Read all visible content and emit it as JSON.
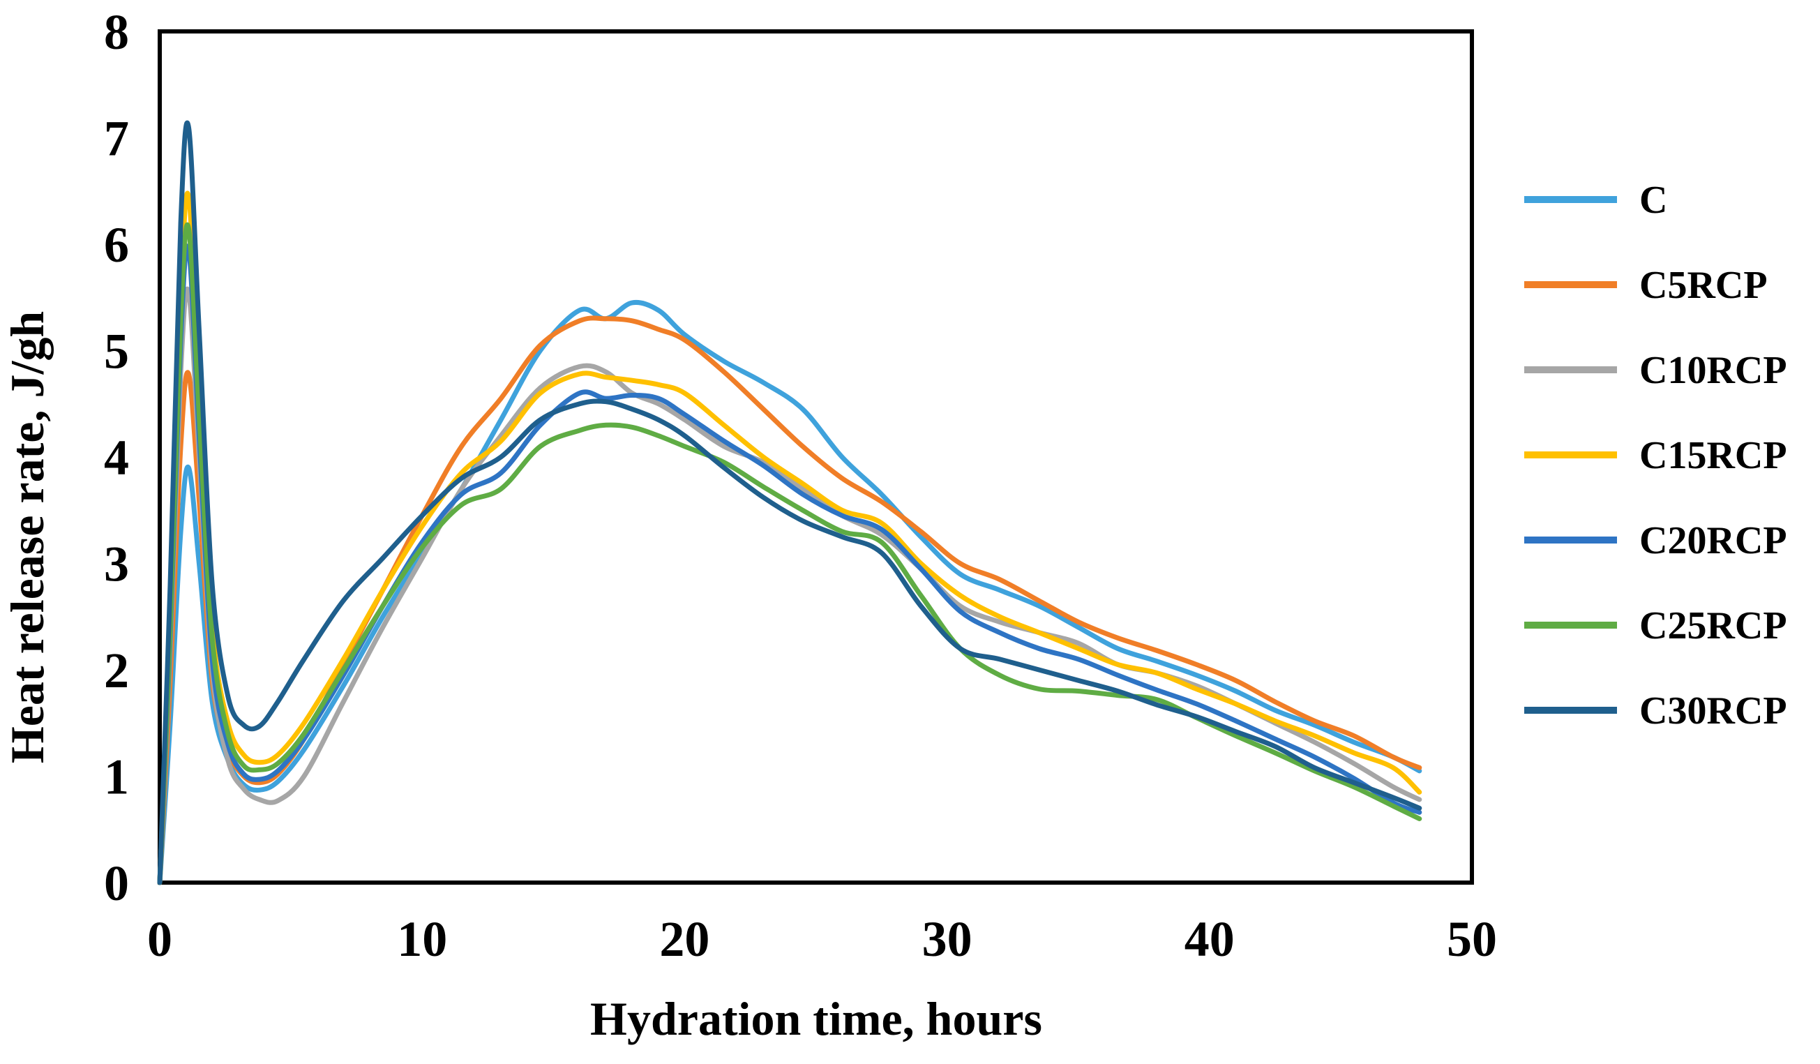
{
  "chart_data": {
    "type": "line",
    "title": "",
    "xlabel": "Hydration time, hours",
    "ylabel": "Heat release rate, J/gh",
    "xlim": [
      0,
      50
    ],
    "ylim": [
      0,
      8
    ],
    "xticks": [
      0,
      10,
      20,
      30,
      40,
      50
    ],
    "yticks": [
      0,
      1,
      2,
      3,
      4,
      5,
      6,
      7,
      8
    ],
    "grid": false,
    "legend_position": "right",
    "border_color": "#000000",
    "series": [
      {
        "name": "C",
        "color": "#3FA2DC",
        "points": [
          [
            0,
            0
          ],
          [
            0.4,
            1.5
          ],
          [
            0.8,
            3.3
          ],
          [
            1.1,
            3.9
          ],
          [
            1.5,
            3.0
          ],
          [
            2,
            1.7
          ],
          [
            2.6,
            1.15
          ],
          [
            3.2,
            0.92
          ],
          [
            3.8,
            0.87
          ],
          [
            4.5,
            0.95
          ],
          [
            5.5,
            1.25
          ],
          [
            7,
            1.85
          ],
          [
            8.5,
            2.5
          ],
          [
            10,
            3.1
          ],
          [
            11.5,
            3.7
          ],
          [
            13,
            4.35
          ],
          [
            14.5,
            5.0
          ],
          [
            16,
            5.38
          ],
          [
            17,
            5.3
          ],
          [
            18,
            5.45
          ],
          [
            19,
            5.38
          ],
          [
            20,
            5.15
          ],
          [
            21.5,
            4.9
          ],
          [
            23,
            4.7
          ],
          [
            24.5,
            4.45
          ],
          [
            26,
            4.0
          ],
          [
            27.5,
            3.65
          ],
          [
            29,
            3.25
          ],
          [
            30.5,
            2.9
          ],
          [
            32,
            2.75
          ],
          [
            33.5,
            2.6
          ],
          [
            35,
            2.4
          ],
          [
            36.5,
            2.2
          ],
          [
            38,
            2.08
          ],
          [
            39.5,
            1.95
          ],
          [
            41,
            1.8
          ],
          [
            42.5,
            1.62
          ],
          [
            44,
            1.48
          ],
          [
            45.5,
            1.32
          ],
          [
            47,
            1.18
          ],
          [
            48,
            1.05
          ]
        ]
      },
      {
        "name": "C5RCP",
        "color": "#F07E27",
        "points": [
          [
            0,
            0
          ],
          [
            0.4,
            1.9
          ],
          [
            0.8,
            4.1
          ],
          [
            1.1,
            4.78
          ],
          [
            1.5,
            3.6
          ],
          [
            2,
            1.9
          ],
          [
            2.6,
            1.25
          ],
          [
            3.2,
            1.0
          ],
          [
            3.8,
            0.94
          ],
          [
            4.5,
            1.02
          ],
          [
            5.5,
            1.35
          ],
          [
            7,
            2.05
          ],
          [
            8.5,
            2.75
          ],
          [
            10,
            3.45
          ],
          [
            11.5,
            4.1
          ],
          [
            13,
            4.55
          ],
          [
            14.5,
            5.05
          ],
          [
            16,
            5.28
          ],
          [
            17,
            5.3
          ],
          [
            18,
            5.28
          ],
          [
            19,
            5.2
          ],
          [
            20,
            5.1
          ],
          [
            21.5,
            4.8
          ],
          [
            23,
            4.45
          ],
          [
            24.5,
            4.1
          ],
          [
            26,
            3.8
          ],
          [
            27.5,
            3.58
          ],
          [
            29,
            3.3
          ],
          [
            30.5,
            3.0
          ],
          [
            32,
            2.85
          ],
          [
            33.5,
            2.65
          ],
          [
            35,
            2.45
          ],
          [
            36.5,
            2.3
          ],
          [
            38,
            2.18
          ],
          [
            39.5,
            2.05
          ],
          [
            41,
            1.9
          ],
          [
            42.5,
            1.7
          ],
          [
            44,
            1.52
          ],
          [
            45.5,
            1.38
          ],
          [
            47,
            1.18
          ],
          [
            48,
            1.08
          ]
        ]
      },
      {
        "name": "C10RCP",
        "color": "#A6A6A6",
        "points": [
          [
            0,
            0
          ],
          [
            0.4,
            2.2
          ],
          [
            0.8,
            4.8
          ],
          [
            1.1,
            5.55
          ],
          [
            1.5,
            4.0
          ],
          [
            2,
            2.0
          ],
          [
            2.6,
            1.15
          ],
          [
            3.2,
            0.88
          ],
          [
            3.8,
            0.78
          ],
          [
            4.5,
            0.77
          ],
          [
            5.5,
            1.0
          ],
          [
            7,
            1.7
          ],
          [
            8.5,
            2.4
          ],
          [
            10,
            3.05
          ],
          [
            11.5,
            3.7
          ],
          [
            13,
            4.2
          ],
          [
            14.5,
            4.65
          ],
          [
            16,
            4.85
          ],
          [
            17,
            4.8
          ],
          [
            18,
            4.6
          ],
          [
            19,
            4.5
          ],
          [
            20,
            4.35
          ],
          [
            21.5,
            4.1
          ],
          [
            23,
            3.95
          ],
          [
            24.5,
            3.7
          ],
          [
            26,
            3.45
          ],
          [
            27.5,
            3.27
          ],
          [
            29,
            2.95
          ],
          [
            30.5,
            2.6
          ],
          [
            32,
            2.45
          ],
          [
            33.5,
            2.35
          ],
          [
            35,
            2.25
          ],
          [
            36.5,
            2.05
          ],
          [
            38,
            1.97
          ],
          [
            39.5,
            1.85
          ],
          [
            41,
            1.68
          ],
          [
            42.5,
            1.5
          ],
          [
            44,
            1.32
          ],
          [
            45.5,
            1.12
          ],
          [
            47,
            0.9
          ],
          [
            48,
            0.78
          ]
        ]
      },
      {
        "name": "C15RCP",
        "color": "#FFC000",
        "points": [
          [
            0,
            0
          ],
          [
            0.4,
            2.5
          ],
          [
            0.8,
            5.5
          ],
          [
            1.1,
            6.45
          ],
          [
            1.5,
            4.6
          ],
          [
            2,
            2.4
          ],
          [
            2.6,
            1.5
          ],
          [
            3.2,
            1.2
          ],
          [
            3.8,
            1.13
          ],
          [
            4.5,
            1.2
          ],
          [
            5.5,
            1.5
          ],
          [
            7,
            2.1
          ],
          [
            8.5,
            2.75
          ],
          [
            10,
            3.35
          ],
          [
            11.5,
            3.85
          ],
          [
            13,
            4.15
          ],
          [
            14.5,
            4.6
          ],
          [
            16,
            4.78
          ],
          [
            17,
            4.75
          ],
          [
            18,
            4.72
          ],
          [
            19,
            4.68
          ],
          [
            20,
            4.6
          ],
          [
            21.5,
            4.3
          ],
          [
            23,
            4.0
          ],
          [
            24.5,
            3.75
          ],
          [
            26,
            3.5
          ],
          [
            27.5,
            3.38
          ],
          [
            29,
            3.0
          ],
          [
            30.5,
            2.7
          ],
          [
            32,
            2.5
          ],
          [
            33.5,
            2.35
          ],
          [
            35,
            2.2
          ],
          [
            36.5,
            2.05
          ],
          [
            38,
            1.97
          ],
          [
            39.5,
            1.82
          ],
          [
            41,
            1.68
          ],
          [
            42.5,
            1.52
          ],
          [
            44,
            1.38
          ],
          [
            45.5,
            1.22
          ],
          [
            47,
            1.08
          ],
          [
            48,
            0.85
          ]
        ]
      },
      {
        "name": "C20RCP",
        "color": "#2E74C4",
        "points": [
          [
            0,
            0
          ],
          [
            0.4,
            2.3
          ],
          [
            0.8,
            5.1
          ],
          [
            1.1,
            5.95
          ],
          [
            1.5,
            4.2
          ],
          [
            2,
            2.1
          ],
          [
            2.6,
            1.3
          ],
          [
            3.2,
            1.02
          ],
          [
            3.8,
            0.97
          ],
          [
            4.5,
            1.05
          ],
          [
            5.5,
            1.35
          ],
          [
            7,
            1.95
          ],
          [
            8.5,
            2.6
          ],
          [
            10,
            3.2
          ],
          [
            11.5,
            3.65
          ],
          [
            13,
            3.85
          ],
          [
            14.5,
            4.3
          ],
          [
            16,
            4.6
          ],
          [
            17,
            4.55
          ],
          [
            18,
            4.58
          ],
          [
            19,
            4.55
          ],
          [
            20,
            4.4
          ],
          [
            21.5,
            4.15
          ],
          [
            23,
            3.92
          ],
          [
            24.5,
            3.65
          ],
          [
            26,
            3.45
          ],
          [
            27.5,
            3.32
          ],
          [
            29,
            2.95
          ],
          [
            30.5,
            2.55
          ],
          [
            32,
            2.35
          ],
          [
            33.5,
            2.2
          ],
          [
            35,
            2.1
          ],
          [
            36.5,
            1.95
          ],
          [
            38,
            1.81
          ],
          [
            39.5,
            1.68
          ],
          [
            41,
            1.52
          ],
          [
            42.5,
            1.35
          ],
          [
            44,
            1.18
          ],
          [
            45.5,
            0.98
          ],
          [
            47,
            0.75
          ],
          [
            48,
            0.66
          ]
        ]
      },
      {
        "name": "C25RCP",
        "color": "#5FAC44",
        "points": [
          [
            0,
            0
          ],
          [
            0.4,
            2.4
          ],
          [
            0.8,
            5.3
          ],
          [
            1.1,
            6.15
          ],
          [
            1.5,
            4.4
          ],
          [
            2,
            2.3
          ],
          [
            2.6,
            1.4
          ],
          [
            3.2,
            1.1
          ],
          [
            3.8,
            1.06
          ],
          [
            4.5,
            1.12
          ],
          [
            5.5,
            1.4
          ],
          [
            7,
            2.0
          ],
          [
            8.5,
            2.6
          ],
          [
            10,
            3.15
          ],
          [
            11.5,
            3.55
          ],
          [
            13,
            3.7
          ],
          [
            14.5,
            4.1
          ],
          [
            16,
            4.25
          ],
          [
            17,
            4.3
          ],
          [
            18,
            4.28
          ],
          [
            19,
            4.2
          ],
          [
            20,
            4.1
          ],
          [
            21.5,
            3.95
          ],
          [
            23,
            3.72
          ],
          [
            24.5,
            3.5
          ],
          [
            26,
            3.3
          ],
          [
            27.5,
            3.2
          ],
          [
            29,
            2.7
          ],
          [
            30.5,
            2.2
          ],
          [
            32,
            1.95
          ],
          [
            33.5,
            1.82
          ],
          [
            35,
            1.8
          ],
          [
            36.5,
            1.76
          ],
          [
            38,
            1.72
          ],
          [
            39.5,
            1.55
          ],
          [
            41,
            1.38
          ],
          [
            42.5,
            1.22
          ],
          [
            44,
            1.05
          ],
          [
            45.5,
            0.9
          ],
          [
            47,
            0.72
          ],
          [
            48,
            0.6
          ]
        ]
      },
      {
        "name": "C30RCP",
        "color": "#1F5F8D",
        "points": [
          [
            0,
            0
          ],
          [
            0.4,
            2.8
          ],
          [
            0.8,
            6.2
          ],
          [
            1.1,
            7.1
          ],
          [
            1.5,
            5.2
          ],
          [
            2,
            2.8
          ],
          [
            2.6,
            1.75
          ],
          [
            3.2,
            1.48
          ],
          [
            3.8,
            1.47
          ],
          [
            4.5,
            1.7
          ],
          [
            5.5,
            2.1
          ],
          [
            7,
            2.65
          ],
          [
            8.5,
            3.05
          ],
          [
            10,
            3.45
          ],
          [
            11.5,
            3.8
          ],
          [
            13,
            4.0
          ],
          [
            14.5,
            4.35
          ],
          [
            16,
            4.5
          ],
          [
            17,
            4.52
          ],
          [
            18,
            4.45
          ],
          [
            19,
            4.35
          ],
          [
            20,
            4.2
          ],
          [
            21.5,
            3.9
          ],
          [
            23,
            3.62
          ],
          [
            24.5,
            3.4
          ],
          [
            26,
            3.25
          ],
          [
            27.5,
            3.1
          ],
          [
            29,
            2.6
          ],
          [
            30.5,
            2.2
          ],
          [
            32,
            2.1
          ],
          [
            33.5,
            2.0
          ],
          [
            35,
            1.9
          ],
          [
            36.5,
            1.8
          ],
          [
            38,
            1.67
          ],
          [
            39.5,
            1.56
          ],
          [
            41,
            1.42
          ],
          [
            42.5,
            1.28
          ],
          [
            44,
            1.08
          ],
          [
            45.5,
            0.94
          ],
          [
            47,
            0.8
          ],
          [
            48,
            0.7
          ]
        ]
      }
    ],
    "legend": [
      "C",
      "C5RCP",
      "C10RCP",
      "C15RCP",
      "C20RCP",
      "C25RCP",
      "C30RCP"
    ]
  }
}
